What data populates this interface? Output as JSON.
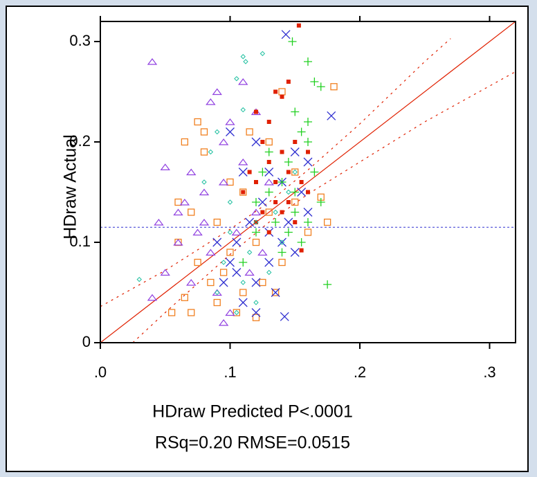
{
  "chart_data": {
    "type": "scatter",
    "x_label": "HDraw Predicted P<.0001",
    "stats_label": "RSq=0.20 RMSE=0.0515",
    "y_label": "HDraw Actual",
    "xlim": [
      0,
      0.32
    ],
    "ylim": [
      0,
      0.32
    ],
    "xticks": [
      {
        "value": 0,
        "label": ".0"
      },
      {
        "value": 0.1,
        "label": ".1"
      },
      {
        "value": 0.2,
        "label": ".2"
      },
      {
        "value": 0.3,
        "label": ".3"
      }
    ],
    "yticks": [
      0,
      0.1,
      0.2,
      0.3
    ],
    "mean_line": {
      "value": 0.115,
      "color": "#3030d0"
    },
    "fit_line": {
      "x": [
        0,
        0.32
      ],
      "y": [
        0,
        0.32
      ],
      "color": "#e02000"
    },
    "confidence_upper": {
      "x": [
        0,
        0.05,
        0.1,
        0.13,
        0.16,
        0.2,
        0.25,
        0.27
      ],
      "y": [
        0.036,
        0.072,
        0.113,
        0.14,
        0.172,
        0.218,
        0.28,
        0.303
      ],
      "color": "#e02000"
    },
    "confidence_lower": {
      "x": [
        0.025,
        0.05,
        0.1,
        0.13,
        0.16,
        0.2,
        0.25,
        0.32
      ],
      "y": [
        0,
        0.03,
        0.088,
        0.12,
        0.148,
        0.18,
        0.22,
        0.27
      ],
      "color": "#e02000"
    },
    "series": [
      {
        "color": "#f08020",
        "marker": "square-open",
        "x": [
          0.075,
          0.065,
          0.08,
          0.08,
          0.14,
          0.18,
          0.115,
          0.13,
          0.06,
          0.07,
          0.09,
          0.11,
          0.15,
          0.17,
          0.175,
          0.16,
          0.14,
          0.135,
          0.055,
          0.065,
          0.07,
          0.085,
          0.1,
          0.095,
          0.12,
          0.13,
          0.11,
          0.12,
          0.06,
          0.075,
          0.09,
          0.105,
          0.125,
          0.15,
          0.1
        ],
        "values": [
          0.22,
          0.2,
          0.19,
          0.21,
          0.25,
          0.255,
          0.21,
          0.2,
          0.14,
          0.13,
          0.12,
          0.15,
          0.17,
          0.145,
          0.12,
          0.11,
          0.08,
          0.05,
          0.03,
          0.045,
          0.03,
          0.06,
          0.09,
          0.07,
          0.1,
          0.13,
          0.05,
          0.025,
          0.1,
          0.08,
          0.04,
          0.03,
          0.06,
          0.14,
          0.16
        ]
      },
      {
        "color": "#9040e0",
        "marker": "triangle",
        "x": [
          0.04,
          0.05,
          0.085,
          0.09,
          0.12,
          0.095,
          0.07,
          0.06,
          0.045,
          0.05,
          0.04,
          0.06,
          0.08,
          0.1,
          0.11,
          0.075,
          0.085,
          0.09,
          0.1,
          0.095,
          0.12,
          0.13,
          0.115,
          0.07,
          0.065,
          0.105,
          0.125,
          0.08,
          0.095,
          0.11
        ],
        "values": [
          0.28,
          0.175,
          0.24,
          0.25,
          0.23,
          0.2,
          0.17,
          0.13,
          0.12,
          0.07,
          0.045,
          0.1,
          0.15,
          0.22,
          0.18,
          0.11,
          0.09,
          0.05,
          0.03,
          0.02,
          0.13,
          0.16,
          0.07,
          0.06,
          0.14,
          0.11,
          0.09,
          0.12,
          0.16,
          0.26
        ]
      },
      {
        "color": "#3030d0",
        "marker": "x",
        "x": [
          0.143,
          0.178,
          0.1,
          0.12,
          0.13,
          0.15,
          0.155,
          0.16,
          0.142,
          0.11,
          0.12,
          0.13,
          0.105,
          0.115,
          0.14,
          0.125,
          0.1,
          0.135,
          0.095,
          0.145,
          0.15,
          0.11,
          0.12,
          0.13,
          0.105,
          0.09,
          0.14,
          0.16
        ],
        "values": [
          0.307,
          0.226,
          0.21,
          0.2,
          0.17,
          0.19,
          0.15,
          0.13,
          0.026,
          0.04,
          0.06,
          0.08,
          0.1,
          0.12,
          0.1,
          0.14,
          0.08,
          0.05,
          0.06,
          0.12,
          0.09,
          0.17,
          0.03,
          0.11,
          0.07,
          0.1,
          0.16,
          0.18
        ]
      },
      {
        "color": "#20d020",
        "marker": "plus",
        "x": [
          0.148,
          0.16,
          0.165,
          0.17,
          0.175,
          0.15,
          0.155,
          0.16,
          0.145,
          0.14,
          0.13,
          0.12,
          0.15,
          0.16,
          0.155,
          0.14,
          0.165,
          0.13,
          0.12,
          0.11,
          0.135,
          0.15,
          0.145,
          0.16,
          0.125,
          0.17
        ],
        "values": [
          0.3,
          0.28,
          0.26,
          0.255,
          0.058,
          0.23,
          0.21,
          0.2,
          0.18,
          0.16,
          0.15,
          0.14,
          0.13,
          0.12,
          0.1,
          0.09,
          0.17,
          0.19,
          0.11,
          0.08,
          0.12,
          0.15,
          0.11,
          0.22,
          0.17,
          0.14
        ]
      },
      {
        "color": "#e02000",
        "marker": "square",
        "x": [
          0.153,
          0.145,
          0.135,
          0.14,
          0.12,
          0.13,
          0.125,
          0.15,
          0.14,
          0.115,
          0.13,
          0.12,
          0.145,
          0.155,
          0.16,
          0.135,
          0.125,
          0.14,
          0.15,
          0.16,
          0.155,
          0.13,
          0.12,
          0.145,
          0.135,
          0.11
        ],
        "values": [
          0.316,
          0.26,
          0.25,
          0.245,
          0.23,
          0.22,
          0.2,
          0.2,
          0.19,
          0.17,
          0.18,
          0.16,
          0.17,
          0.16,
          0.19,
          0.14,
          0.13,
          0.13,
          0.12,
          0.15,
          0.092,
          0.11,
          0.12,
          0.14,
          0.16,
          0.15
        ]
      },
      {
        "color": "#20c0a0",
        "marker": "diamond",
        "x": [
          0.11,
          0.112,
          0.125,
          0.105,
          0.11,
          0.09,
          0.085,
          0.03,
          0.08,
          0.1,
          0.12,
          0.14,
          0.095,
          0.11,
          0.12,
          0.105,
          0.13,
          0.09,
          0.115,
          0.135,
          0.1,
          0.145,
          0.15
        ],
        "values": [
          0.285,
          0.28,
          0.288,
          0.263,
          0.232,
          0.21,
          0.19,
          0.063,
          0.16,
          0.14,
          0.12,
          0.1,
          0.08,
          0.06,
          0.04,
          0.03,
          0.07,
          0.05,
          0.09,
          0.13,
          0.11,
          0.15,
          0.17
        ]
      }
    ]
  }
}
